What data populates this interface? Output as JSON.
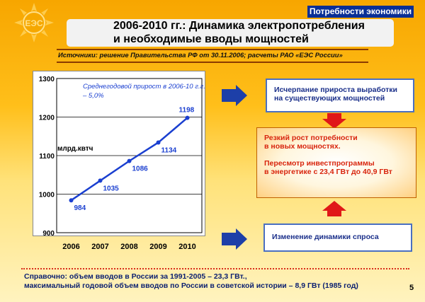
{
  "header": {
    "category": "Потребности экономики",
    "title_line1": "2006-2010 гг.: Динамика электропотребления",
    "title_line2": "и необходимые вводы мощностей",
    "sources": "Источники:  решение Правительства РФ от 30.11.2006; расчеты РАО «ЕЭС России»",
    "logo_text": "ЕЭС"
  },
  "chart_data": {
    "type": "line",
    "x": [
      "2006",
      "2007",
      "2008",
      "2009",
      "2010"
    ],
    "series": [
      {
        "values": [
          984,
          1035,
          1086,
          1134,
          1198
        ]
      }
    ],
    "ylim": [
      900,
      1300
    ],
    "yticks": [
      "900",
      "1000",
      "1100",
      "1200",
      "1300"
    ],
    "ylabel": "млрд.квтч",
    "annotation_line1": "Среднегодовой прирост в 2006-10 г.г.",
    "annotation_line2": "– 5,0%",
    "data_labels": [
      "984",
      "1035",
      "1086",
      "1134",
      "1198"
    ],
    "grid": true,
    "line_color": "#1a3fd0",
    "marker_color": "#1a3fd0"
  },
  "boxes": {
    "box1_line1": "Исчерпание прироста выработки",
    "box1_line2": "на существующих мощностей",
    "box2_line1": "Резкий рост потребности",
    "box2_line2": "в новых мощностях.",
    "box2_line3": "Пересмотр инвестпрограммы",
    "box2_line4": "в энергетике с 23,4 ГВт до 40,9 ГВт",
    "box3_line1": "Изменение динамики спроса"
  },
  "footer": {
    "ref_line1": "Справочно: объем вводов в России за  1991-2005 – 23,3 ГВт.,",
    "ref_line2": "максимальный годовой объем вводов по России в советской истории – 8,9 ГВт (1985 год)",
    "page_number": "5"
  },
  "colors": {
    "accent_blue": "#0a2f96",
    "box_border": "#4a6fc0",
    "highlight_red": "#d8240c",
    "arrow_blue": "#1d3fa8",
    "arrow_red": "#e01818"
  }
}
